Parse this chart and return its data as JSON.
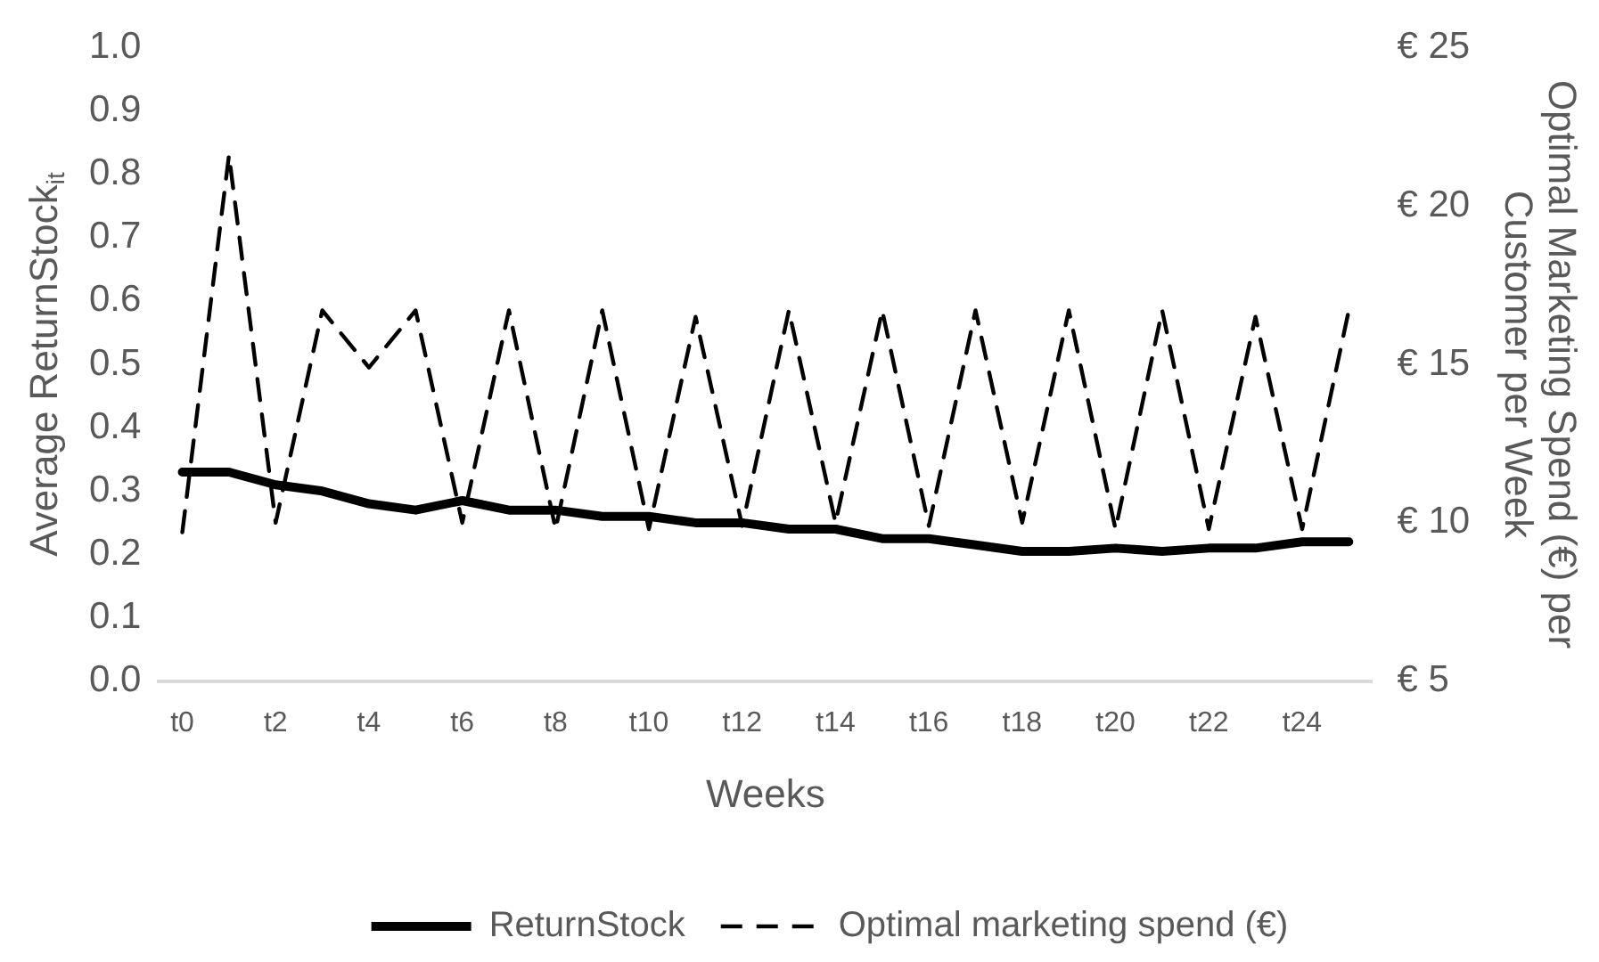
{
  "chart_data": {
    "type": "line",
    "xlabel": "Weeks",
    "ylabel": "Average ReturnStock$_{it}$",
    "y2label": "Optimal Marketing Spend (€) per Customer per Week",
    "categories": [
      "t0",
      null,
      "t2",
      null,
      "t4",
      null,
      "t6",
      null,
      "t8",
      null,
      "t10",
      null,
      "t12",
      null,
      "t14",
      null,
      "t16",
      null,
      "t18",
      null,
      "t20",
      null,
      "t22",
      null,
      "t24",
      null
    ],
    "series": [
      {
        "name": "ReturnStock",
        "color": "#000000",
        "line_style": "solid",
        "values": [
          0.33,
          0.33,
          0.31,
          0.3,
          0.28,
          0.27,
          0.285,
          0.27,
          0.27,
          0.26,
          0.26,
          0.25,
          0.25,
          0.24,
          0.24,
          0.225,
          0.225,
          0.215,
          0.205,
          0.205,
          0.21,
          0.205,
          0.21,
          0.21,
          0.22,
          0.22
        ]
      },
      {
        "name": "Optimal marketing spend (€)",
        "color": "#000000",
        "line_style": "dashed",
        "axis": "y2",
        "values": [
          9.7,
          21.6,
          10,
          16.7,
          14.9,
          16.7,
          10,
          16.7,
          9.8,
          16.7,
          9.8,
          16.5,
          9.9,
          16.7,
          10,
          16.7,
          9.9,
          16.7,
          10,
          16.7,
          9.8,
          16.7,
          9.8,
          16.5,
          9.8,
          16.7
        ]
      }
    ],
    "ylim": [
      0,
      1
    ],
    "yticks": [
      {
        "value": 0,
        "label": "0.0"
      },
      {
        "value": 0.1,
        "label": "0.1"
      },
      {
        "value": 0.2,
        "label": "0.2"
      },
      {
        "value": 0.3,
        "label": "0.3"
      },
      {
        "value": 0.4,
        "label": "0.4"
      },
      {
        "value": 0.5,
        "label": "0.5"
      },
      {
        "value": 0.6,
        "label": "0.6"
      },
      {
        "value": 0.7,
        "label": "0.7"
      },
      {
        "value": 0.8,
        "label": "0.8"
      },
      {
        "value": 0.9,
        "label": "0.9"
      },
      {
        "value": 1,
        "label": "1.0"
      }
    ],
    "y2lim": [
      5,
      25
    ],
    "y2ticks": [
      {
        "value": 5,
        "label": "€ 5"
      },
      {
        "value": 10,
        "label": "€ 10"
      },
      {
        "value": 15,
        "label": "€ 15"
      },
      {
        "value": 20,
        "label": "€ 20"
      },
      {
        "value": 25,
        "label": "€ 25"
      }
    ],
    "grid": false,
    "legend": "bottom",
    "marker": "none"
  }
}
